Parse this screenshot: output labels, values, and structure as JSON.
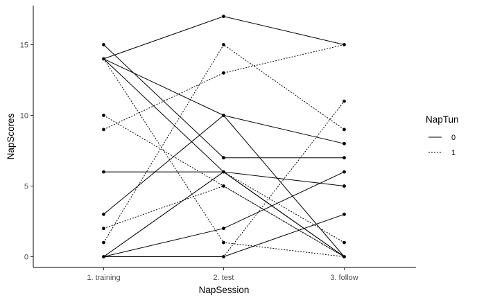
{
  "chart_data": {
    "type": "line",
    "xlabel": "NapSession",
    "ylabel": "NapScores",
    "categories": [
      "1. training",
      "2. test",
      "3. follow"
    ],
    "ylim": [
      -0.8,
      17.7
    ],
    "yticks": [
      0,
      5,
      10,
      15
    ],
    "grid": false,
    "legend": {
      "title": "NapTun",
      "placement": "right",
      "entries": [
        {
          "label": "0",
          "linetype": "solid"
        },
        {
          "label": "1",
          "linetype": "dashed"
        }
      ]
    },
    "series": [
      {
        "group": "0",
        "values": [
          14,
          17,
          15
        ]
      },
      {
        "group": "0",
        "values": [
          14,
          10,
          8
        ]
      },
      {
        "group": "0",
        "values": [
          15,
          7,
          7
        ]
      },
      {
        "group": "0",
        "values": [
          14,
          6,
          0
        ]
      },
      {
        "group": "0",
        "values": [
          6,
          6,
          5
        ]
      },
      {
        "group": "0",
        "values": [
          3,
          10,
          0
        ]
      },
      {
        "group": "0",
        "values": [
          0,
          6,
          0
        ]
      },
      {
        "group": "0",
        "values": [
          0,
          2,
          6
        ]
      },
      {
        "group": "0",
        "values": [
          0,
          0,
          3
        ]
      },
      {
        "group": "1",
        "values": [
          9,
          13,
          15
        ]
      },
      {
        "group": "1",
        "values": [
          10,
          5,
          0
        ]
      },
      {
        "group": "1",
        "values": [
          14,
          1,
          0
        ]
      },
      {
        "group": "1",
        "values": [
          2,
          5,
          0
        ]
      },
      {
        "group": "1",
        "values": [
          1,
          15,
          9
        ]
      },
      {
        "group": "1",
        "values": [
          0,
          6,
          1
        ]
      },
      {
        "group": "1",
        "values": [
          0,
          0,
          11
        ]
      }
    ]
  }
}
